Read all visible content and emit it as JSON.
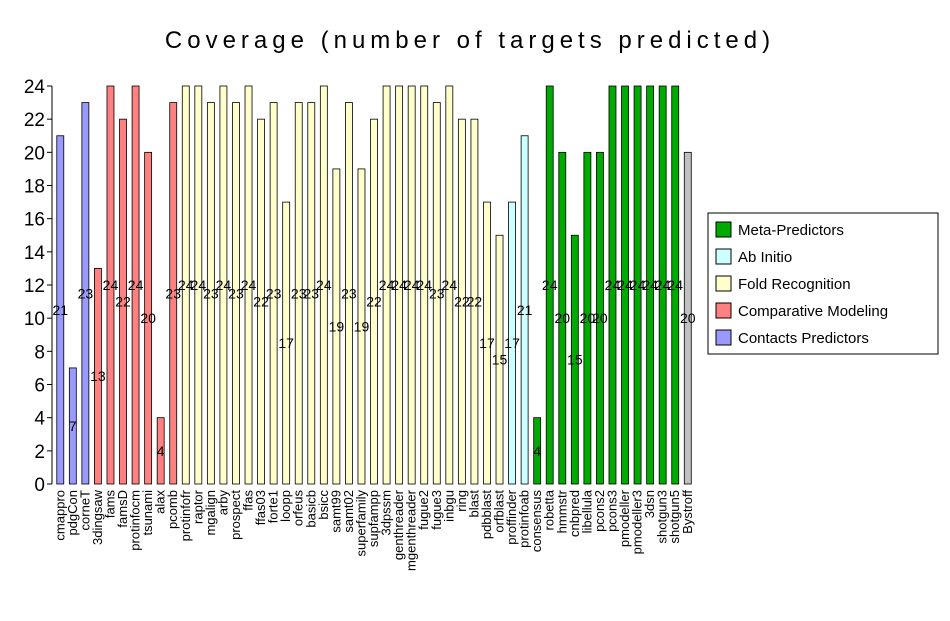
{
  "chart_data": {
    "type": "bar",
    "title": "Coverage (number of targets predicted)",
    "xlabel": "",
    "ylabel": "",
    "ylim": [
      0,
      24
    ],
    "yticks": [
      0,
      2,
      4,
      6,
      8,
      10,
      12,
      14,
      16,
      18,
      20,
      22,
      24
    ],
    "grid": false,
    "legend_position": "right",
    "legend": [
      "Meta-Predictors",
      "Ab Initio",
      "Fold Recognition",
      "Comparative Modeling",
      "Contacts Predictors"
    ],
    "groups": [
      {
        "name": "Contacts Predictors",
        "color": "#9999ff"
      },
      {
        "name": "Comparative Modeling",
        "color": "#ff8080"
      },
      {
        "name": "Fold Recognition",
        "color": "#ffffcc"
      },
      {
        "name": "Ab Initio",
        "color": "#ccffff"
      },
      {
        "name": "Meta-Predictors",
        "color": "#00aa00"
      },
      {
        "name": "",
        "color": "#c0c0c0"
      }
    ],
    "bars": [
      {
        "label": "cmappro",
        "value": 21,
        "group": 0
      },
      {
        "label": "pdgCon",
        "value": 7,
        "group": 0
      },
      {
        "label": "corneT",
        "value": 23,
        "group": 0
      },
      {
        "label": "3dingsaw",
        "value": 13,
        "group": 1
      },
      {
        "label": "fams",
        "value": 24,
        "group": 1
      },
      {
        "label": "famsD",
        "value": 22,
        "group": 1
      },
      {
        "label": "protinfocm",
        "value": 24,
        "group": 1
      },
      {
        "label": "tsunami",
        "value": 20,
        "group": 1
      },
      {
        "label": "alax",
        "value": 4,
        "group": 1
      },
      {
        "label": "pcomb",
        "value": 23,
        "group": 1
      },
      {
        "label": "protinfofr",
        "value": 24,
        "group": 2
      },
      {
        "label": "raptor",
        "value": 24,
        "group": 2
      },
      {
        "label": "mgalign",
        "value": 23,
        "group": 2
      },
      {
        "label": "arby",
        "value": 24,
        "group": 2
      },
      {
        "label": "prospect",
        "value": 23,
        "group": 2
      },
      {
        "label": "ffas",
        "value": 24,
        "group": 2
      },
      {
        "label": "ffas03",
        "value": 22,
        "group": 2
      },
      {
        "label": "forte1",
        "value": 23,
        "group": 2
      },
      {
        "label": "loopp",
        "value": 17,
        "group": 2
      },
      {
        "label": "orfeus",
        "value": 23,
        "group": 2
      },
      {
        "label": "basicb",
        "value": 23,
        "group": 2
      },
      {
        "label": "bsicc",
        "value": 24,
        "group": 2
      },
      {
        "label": "samt99",
        "value": 19,
        "group": 2
      },
      {
        "label": "samt02",
        "value": 23,
        "group": 2
      },
      {
        "label": "superfamily",
        "value": 19,
        "group": 2
      },
      {
        "label": "supfampp",
        "value": 22,
        "group": 2
      },
      {
        "label": "3dpssm",
        "value": 24,
        "group": 2
      },
      {
        "label": "genthreader",
        "value": 24,
        "group": 2
      },
      {
        "label": "mgenthreader",
        "value": 24,
        "group": 2
      },
      {
        "label": "fugue2",
        "value": 24,
        "group": 2
      },
      {
        "label": "fugue3",
        "value": 23,
        "group": 2
      },
      {
        "label": "inbgu",
        "value": 24,
        "group": 2
      },
      {
        "label": "ring",
        "value": 22,
        "group": 2
      },
      {
        "label": "blast",
        "value": 22,
        "group": 2
      },
      {
        "label": "pdbblast",
        "value": 17,
        "group": 2
      },
      {
        "label": "orfblast",
        "value": 15,
        "group": 2
      },
      {
        "label": "proffinder",
        "value": 17,
        "group": 3
      },
      {
        "label": "protinfoab",
        "value": 21,
        "group": 3
      },
      {
        "label": "consensus",
        "value": 4,
        "group": 4
      },
      {
        "label": "robetta",
        "value": 24,
        "group": 4
      },
      {
        "label": "hmmstr",
        "value": 20,
        "group": 4
      },
      {
        "label": "cnbpred",
        "value": 15,
        "group": 4
      },
      {
        "label": "libellula",
        "value": 20,
        "group": 4
      },
      {
        "label": "pcons2",
        "value": 20,
        "group": 4
      },
      {
        "label": "pcons3",
        "value": 24,
        "group": 4
      },
      {
        "label": "pmodeller",
        "value": 24,
        "group": 4
      },
      {
        "label": "pmodeller3",
        "value": 24,
        "group": 4
      },
      {
        "label": "3dsn",
        "value": 24,
        "group": 4
      },
      {
        "label": "shotgun3",
        "value": 24,
        "group": 4
      },
      {
        "label": "shotgun5",
        "value": 24,
        "group": 4
      },
      {
        "label": "Bystroff",
        "value": 20,
        "group": 5
      }
    ]
  }
}
